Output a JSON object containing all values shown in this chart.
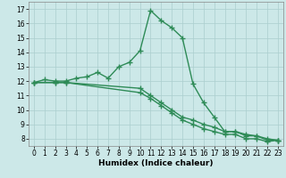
{
  "line1_x": [
    0,
    1,
    2,
    3,
    4,
    5,
    6,
    7,
    8,
    9,
    10,
    11,
    12,
    13,
    14,
    15,
    16,
    17,
    18,
    19,
    20,
    21,
    22,
    23
  ],
  "line1_y": [
    11.9,
    12.1,
    12.0,
    12.0,
    12.2,
    12.3,
    12.6,
    12.2,
    13.0,
    13.3,
    14.1,
    16.9,
    16.2,
    15.7,
    15.0,
    11.8,
    10.5,
    9.5,
    8.5,
    8.5,
    8.3,
    8.2,
    7.9,
    7.9
  ],
  "line2_x": [
    0,
    2,
    3,
    10,
    11,
    12,
    13,
    14,
    15,
    16,
    17,
    18,
    19,
    20,
    21,
    22,
    23
  ],
  "line2_y": [
    11.9,
    11.9,
    11.9,
    11.5,
    11.0,
    10.5,
    10.0,
    9.5,
    9.3,
    9.0,
    8.8,
    8.5,
    8.5,
    8.2,
    8.2,
    8.0,
    7.9
  ],
  "line3_x": [
    0,
    2,
    3,
    10,
    11,
    12,
    13,
    14,
    15,
    16,
    17,
    18,
    19,
    20,
    21,
    22,
    23
  ],
  "line3_y": [
    11.9,
    11.9,
    11.9,
    11.2,
    10.8,
    10.3,
    9.8,
    9.3,
    9.0,
    8.7,
    8.5,
    8.3,
    8.3,
    8.0,
    8.0,
    7.8,
    7.9
  ],
  "color": "#2e8b57",
  "bg_color": "#cce8e8",
  "grid_color": "#aacece",
  "xlabel": "Humidex (Indice chaleur)",
  "xlim": [
    -0.5,
    23.5
  ],
  "ylim": [
    7.5,
    17.5
  ],
  "yticks": [
    8,
    9,
    10,
    11,
    12,
    13,
    14,
    15,
    16,
    17
  ],
  "xticks": [
    0,
    1,
    2,
    3,
    4,
    5,
    6,
    7,
    8,
    9,
    10,
    11,
    12,
    13,
    14,
    15,
    16,
    17,
    18,
    19,
    20,
    21,
    22,
    23
  ],
  "marker": "+",
  "markersize": 4,
  "linewidth": 1.0
}
